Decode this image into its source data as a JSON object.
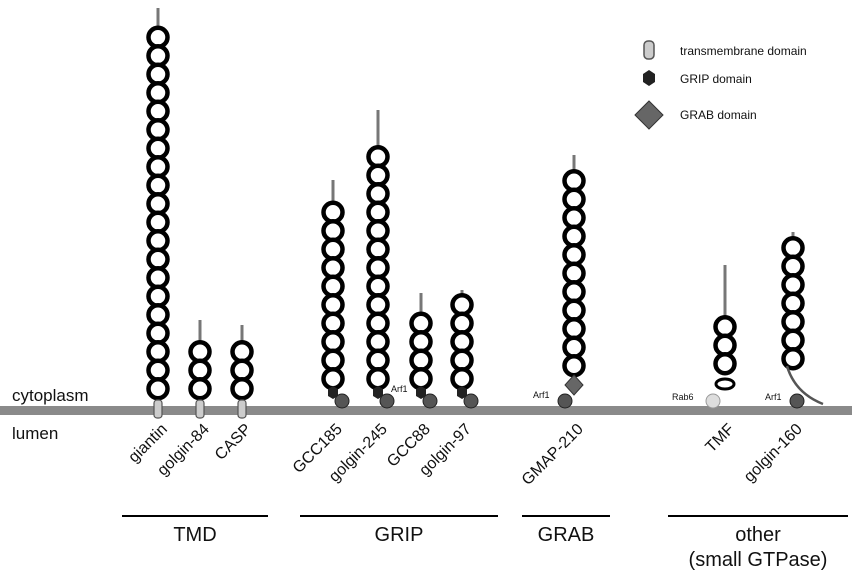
{
  "legend": [
    {
      "label": "transmembrane domain"
    },
    {
      "label": "GRIP domain"
    },
    {
      "label": "GRAB domain"
    }
  ],
  "compartments": {
    "cytoplasm": "cytoplasm",
    "lumen": "lumen"
  },
  "proteins": [
    {
      "name": "giantin"
    },
    {
      "name": "golgin-84"
    },
    {
      "name": "CASP"
    },
    {
      "name": "GCC185"
    },
    {
      "name": "golgin-245"
    },
    {
      "name": "GCC88"
    },
    {
      "name": "golgin-97"
    },
    {
      "name": "GMAP-210"
    },
    {
      "name": "TMF"
    },
    {
      "name": "golgin-160"
    }
  ],
  "gtpase_labels": [
    "Arf1",
    "Arf1",
    "Rab6",
    "Arf1"
  ],
  "groups": [
    {
      "label": "TMD"
    },
    {
      "label": "GRIP"
    },
    {
      "label": "GRAB"
    },
    {
      "label": "other",
      "sublabel": "(small GTPase)"
    }
  ]
}
